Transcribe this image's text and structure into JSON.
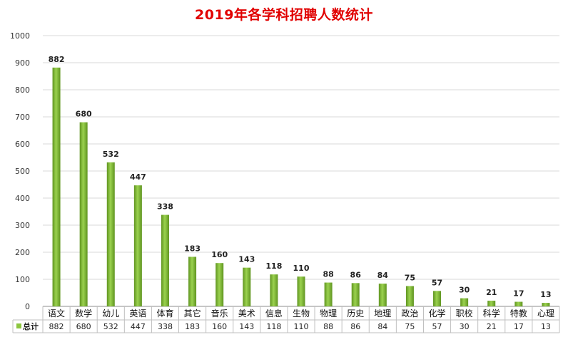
{
  "chart_data": {
    "type": "bar",
    "title": "2019年各学科招聘人数统计",
    "categories": [
      "语文",
      "数学",
      "幼儿",
      "英语",
      "体育",
      "其它",
      "音乐",
      "美术",
      "信息",
      "生物",
      "物理",
      "历史",
      "地理",
      "政治",
      "化学",
      "职校",
      "科学",
      "特教",
      "心理"
    ],
    "series": [
      {
        "name": "总计",
        "values": [
          882,
          680,
          532,
          447,
          338,
          183,
          160,
          143,
          118,
          110,
          88,
          86,
          84,
          75,
          57,
          30,
          21,
          17,
          13
        ]
      }
    ],
    "ylim": [
      0,
      1000
    ],
    "yticks": [
      0,
      100,
      200,
      300,
      400,
      500,
      600,
      700,
      800,
      900,
      1000
    ],
    "grid": true,
    "legend": "bottom-left in data table",
    "data_labels": true,
    "colors": {
      "bar": "#8cc63f",
      "bar_dark": "#5f9420",
      "title": "#e10000",
      "grid": "#d9d9d9"
    }
  }
}
